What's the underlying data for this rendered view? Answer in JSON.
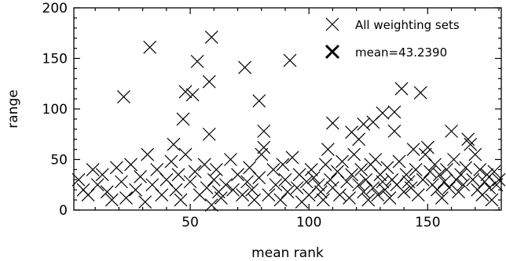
{
  "chart_data": {
    "type": "scatter",
    "xlabel": "mean rank",
    "ylabel": "range",
    "xlim": [
      1,
      181
    ],
    "ylim": [
      0,
      200
    ],
    "x_ticks": [
      50,
      100,
      150
    ],
    "y_ticks": [
      0,
      50,
      100,
      150,
      200
    ],
    "grid": false,
    "legend_position": "top-right",
    "legend": [
      {
        "label": "All weighting sets",
        "marker": "x"
      },
      {
        "label": "mean=43.2390",
        "marker": "x-bold"
      }
    ],
    "series": [
      {
        "name": "All weighting sets",
        "points": [
          [
            22,
            112
          ],
          [
            33,
            161
          ],
          [
            53,
            147
          ],
          [
            59,
            171
          ],
          [
            73,
            141
          ],
          [
            92,
            148
          ],
          [
            58,
            127
          ],
          [
            48,
            117
          ],
          [
            51,
            114
          ],
          [
            79,
            108
          ],
          [
            47,
            90
          ],
          [
            58,
            75
          ],
          [
            81,
            78
          ],
          [
            110,
            86
          ],
          [
            127,
            87
          ],
          [
            131,
            96
          ],
          [
            139,
            120
          ],
          [
            147,
            116
          ],
          [
            136,
            97
          ],
          [
            160,
            78
          ],
          [
            136,
            78
          ],
          [
            118,
            77
          ],
          [
            121,
            70
          ],
          [
            123,
            85
          ],
          [
            144,
            60
          ],
          [
            150,
            62
          ],
          [
            3,
            30
          ],
          [
            5,
            20
          ],
          [
            7,
            15
          ],
          [
            9,
            40
          ],
          [
            11,
            25
          ],
          [
            13,
            35
          ],
          [
            15,
            18
          ],
          [
            17,
            10
          ],
          [
            19,
            42
          ],
          [
            21,
            28
          ],
          [
            23,
            12
          ],
          [
            25,
            45
          ],
          [
            27,
            20
          ],
          [
            29,
            33
          ],
          [
            31,
            8
          ],
          [
            32,
            55
          ],
          [
            34,
            25
          ],
          [
            36,
            40
          ],
          [
            38,
            15
          ],
          [
            40,
            30
          ],
          [
            42,
            48
          ],
          [
            43,
            65
          ],
          [
            44,
            20
          ],
          [
            45,
            35
          ],
          [
            46,
            10
          ],
          [
            48,
            55
          ],
          [
            50,
            28
          ],
          [
            52,
            38
          ],
          [
            54,
            15
          ],
          [
            56,
            45
          ],
          [
            57,
            22
          ],
          [
            59,
            5
          ],
          [
            60,
            30
          ],
          [
            61,
            40
          ],
          [
            62,
            18
          ],
          [
            63,
            12
          ],
          [
            65,
            25
          ],
          [
            67,
            50
          ],
          [
            68,
            20
          ],
          [
            70,
            35
          ],
          [
            72,
            15
          ],
          [
            74,
            28
          ],
          [
            75,
            42
          ],
          [
            76,
            20
          ],
          [
            77,
            10
          ],
          [
            79,
            32
          ],
          [
            80,
            55
          ],
          [
            81,
            62
          ],
          [
            83,
            15
          ],
          [
            85,
            40
          ],
          [
            86,
            25
          ],
          [
            88,
            10
          ],
          [
            89,
            45
          ],
          [
            90,
            30
          ],
          [
            91,
            18
          ],
          [
            93,
            52
          ],
          [
            95,
            22
          ],
          [
            96,
            35
          ],
          [
            97,
            8
          ],
          [
            99,
            28
          ],
          [
            100,
            15
          ],
          [
            101,
            40
          ],
          [
            102,
            32
          ],
          [
            104,
            25
          ],
          [
            105,
            18
          ],
          [
            106,
            10
          ],
          [
            107,
            45
          ],
          [
            108,
            60
          ],
          [
            109,
            30
          ],
          [
            110,
            22
          ],
          [
            112,
            38
          ],
          [
            113,
            15
          ],
          [
            114,
            48
          ],
          [
            116,
            28
          ],
          [
            117,
            12
          ],
          [
            118,
            35
          ],
          [
            119,
            55
          ],
          [
            121,
            25
          ],
          [
            122,
            40
          ],
          [
            123,
            18
          ],
          [
            124,
            30
          ],
          [
            125,
            10
          ],
          [
            126,
            45
          ],
          [
            127,
            22
          ],
          [
            128,
            50
          ],
          [
            129,
            15
          ],
          [
            130,
            35
          ],
          [
            131,
            28
          ],
          [
            132,
            20
          ],
          [
            133,
            42
          ],
          [
            134,
            12
          ],
          [
            135,
            30
          ],
          [
            137,
            25
          ],
          [
            138,
            48
          ],
          [
            140,
            18
          ],
          [
            141,
            35
          ],
          [
            142,
            28
          ],
          [
            143,
            22
          ],
          [
            145,
            40
          ],
          [
            146,
            15
          ],
          [
            148,
            30
          ],
          [
            149,
            55
          ],
          [
            151,
            38
          ],
          [
            152,
            25
          ],
          [
            153,
            45
          ],
          [
            154,
            20
          ],
          [
            155,
            35
          ],
          [
            156,
            12
          ],
          [
            157,
            28
          ],
          [
            158,
            40
          ],
          [
            159,
            22
          ],
          [
            161,
            50
          ],
          [
            162,
            30
          ],
          [
            163,
            18
          ],
          [
            164,
            35
          ],
          [
            165,
            25
          ],
          [
            166,
            42
          ],
          [
            167,
            70
          ],
          [
            168,
            65
          ],
          [
            169,
            30
          ],
          [
            170,
            55
          ],
          [
            171,
            20
          ],
          [
            172,
            40
          ],
          [
            173,
            15
          ],
          [
            174,
            28
          ],
          [
            175,
            35
          ],
          [
            176,
            22
          ],
          [
            177,
            10
          ],
          [
            178,
            38
          ],
          [
            179,
            25
          ],
          [
            180,
            30
          ]
        ]
      }
    ]
  }
}
